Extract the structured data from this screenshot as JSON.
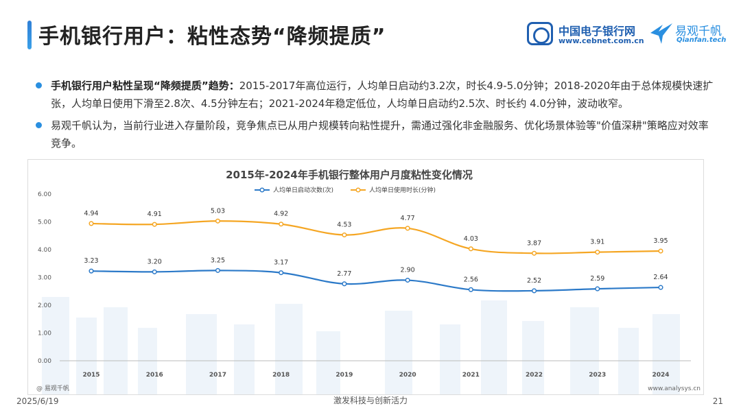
{
  "header": {
    "title": "手机银行用户：粘性态势“降频提质”",
    "logo_cebnet_cn": "中国电子银行网",
    "logo_cebnet_url": "www.cebnet.com.cn",
    "logo_qf_cn": "易观千帆",
    "logo_qf_en": "Qianfan.tech"
  },
  "bullets": [
    {
      "bold": "手机银行用户粘性呈现“降频提质”趋势：",
      "text": "2015-2017年高位运行，人均单日启动约3.2次，时长4.9-5.0分钟；2018-2020年由于总体规模快速扩张，人均单日使用下滑至2.8次、4.5分钟左右；2021-2024年稳定低位，人均单日启动约2.5次、时长约 4.0分钟，波动收窄。"
    },
    {
      "bold": "",
      "text": "易观千帆认为，当前行业进入存量阶段，竞争焦点已从用户规模转向粘性提升，需通过强化非金融服务、优化场景体验等\"价值深耕\"策略应对效率竞争。"
    }
  ],
  "chart_data": {
    "type": "line",
    "title": "2015年-2024年手机银行整体用户月度粘性变化情况",
    "categories": [
      "2015",
      "2016",
      "2017",
      "2018",
      "2019",
      "2020",
      "2021",
      "2022",
      "2023",
      "2024"
    ],
    "series": [
      {
        "name": "人均单日启动次数(次)",
        "color": "#2b79c8",
        "values": [
          3.23,
          3.2,
          3.25,
          3.17,
          2.77,
          2.9,
          2.56,
          2.52,
          2.59,
          2.64
        ]
      },
      {
        "name": "人均单日使用时长(分钟)",
        "color": "#f5a623",
        "values": [
          4.94,
          4.91,
          5.03,
          4.92,
          4.53,
          4.77,
          4.03,
          3.87,
          3.91,
          3.95
        ]
      }
    ],
    "yticks": [
      "0.00",
      "1.00",
      "2.00",
      "3.00",
      "4.00",
      "5.00",
      "6.00"
    ],
    "ylim": [
      0,
      6
    ],
    "legend_position": "top-center",
    "grid": false
  },
  "chart_source": "@ 易观千帆",
  "chart_site": "www.analysys.cn",
  "footer": {
    "date": "2025/6/19",
    "slogan": "激发科技与创新活力",
    "page": "21"
  }
}
